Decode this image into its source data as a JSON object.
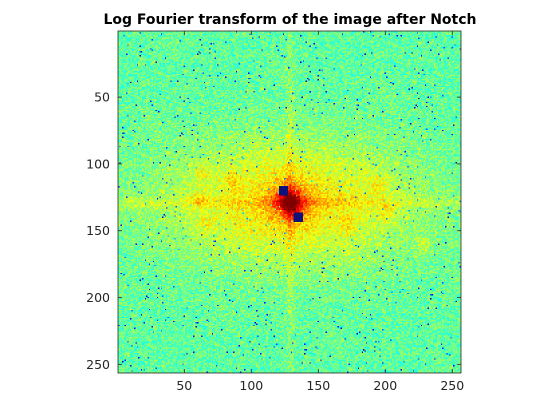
{
  "figure": {
    "title": "Log Fourier transform of the image after Notch"
  },
  "image": {
    "description_hint": "log-magnitude Fourier spectrum shown with jet colormap",
    "size": [
      256,
      256
    ],
    "colormap": "jet",
    "dc_center": [
      128,
      128
    ],
    "notch_markers": [
      {
        "x": 123,
        "y": 119,
        "color": "#10107a"
      },
      {
        "x": 134,
        "y": 139,
        "color": "#10107a"
      }
    ]
  },
  "axes": {
    "x_ticks": [
      {
        "value": 50,
        "label": "50"
      },
      {
        "value": 100,
        "label": "100"
      },
      {
        "value": 150,
        "label": "150"
      },
      {
        "value": 200,
        "label": "200"
      },
      {
        "value": 250,
        "label": "250"
      }
    ],
    "y_ticks": [
      {
        "value": 50,
        "label": "50"
      },
      {
        "value": 100,
        "label": "100"
      },
      {
        "value": 150,
        "label": "150"
      },
      {
        "value": 200,
        "label": "200"
      },
      {
        "value": 250,
        "label": "250"
      }
    ],
    "xlim": [
      0.5,
      256.5
    ],
    "ylim": [
      0.5,
      256.5
    ],
    "y_direction": "reverse"
  }
}
